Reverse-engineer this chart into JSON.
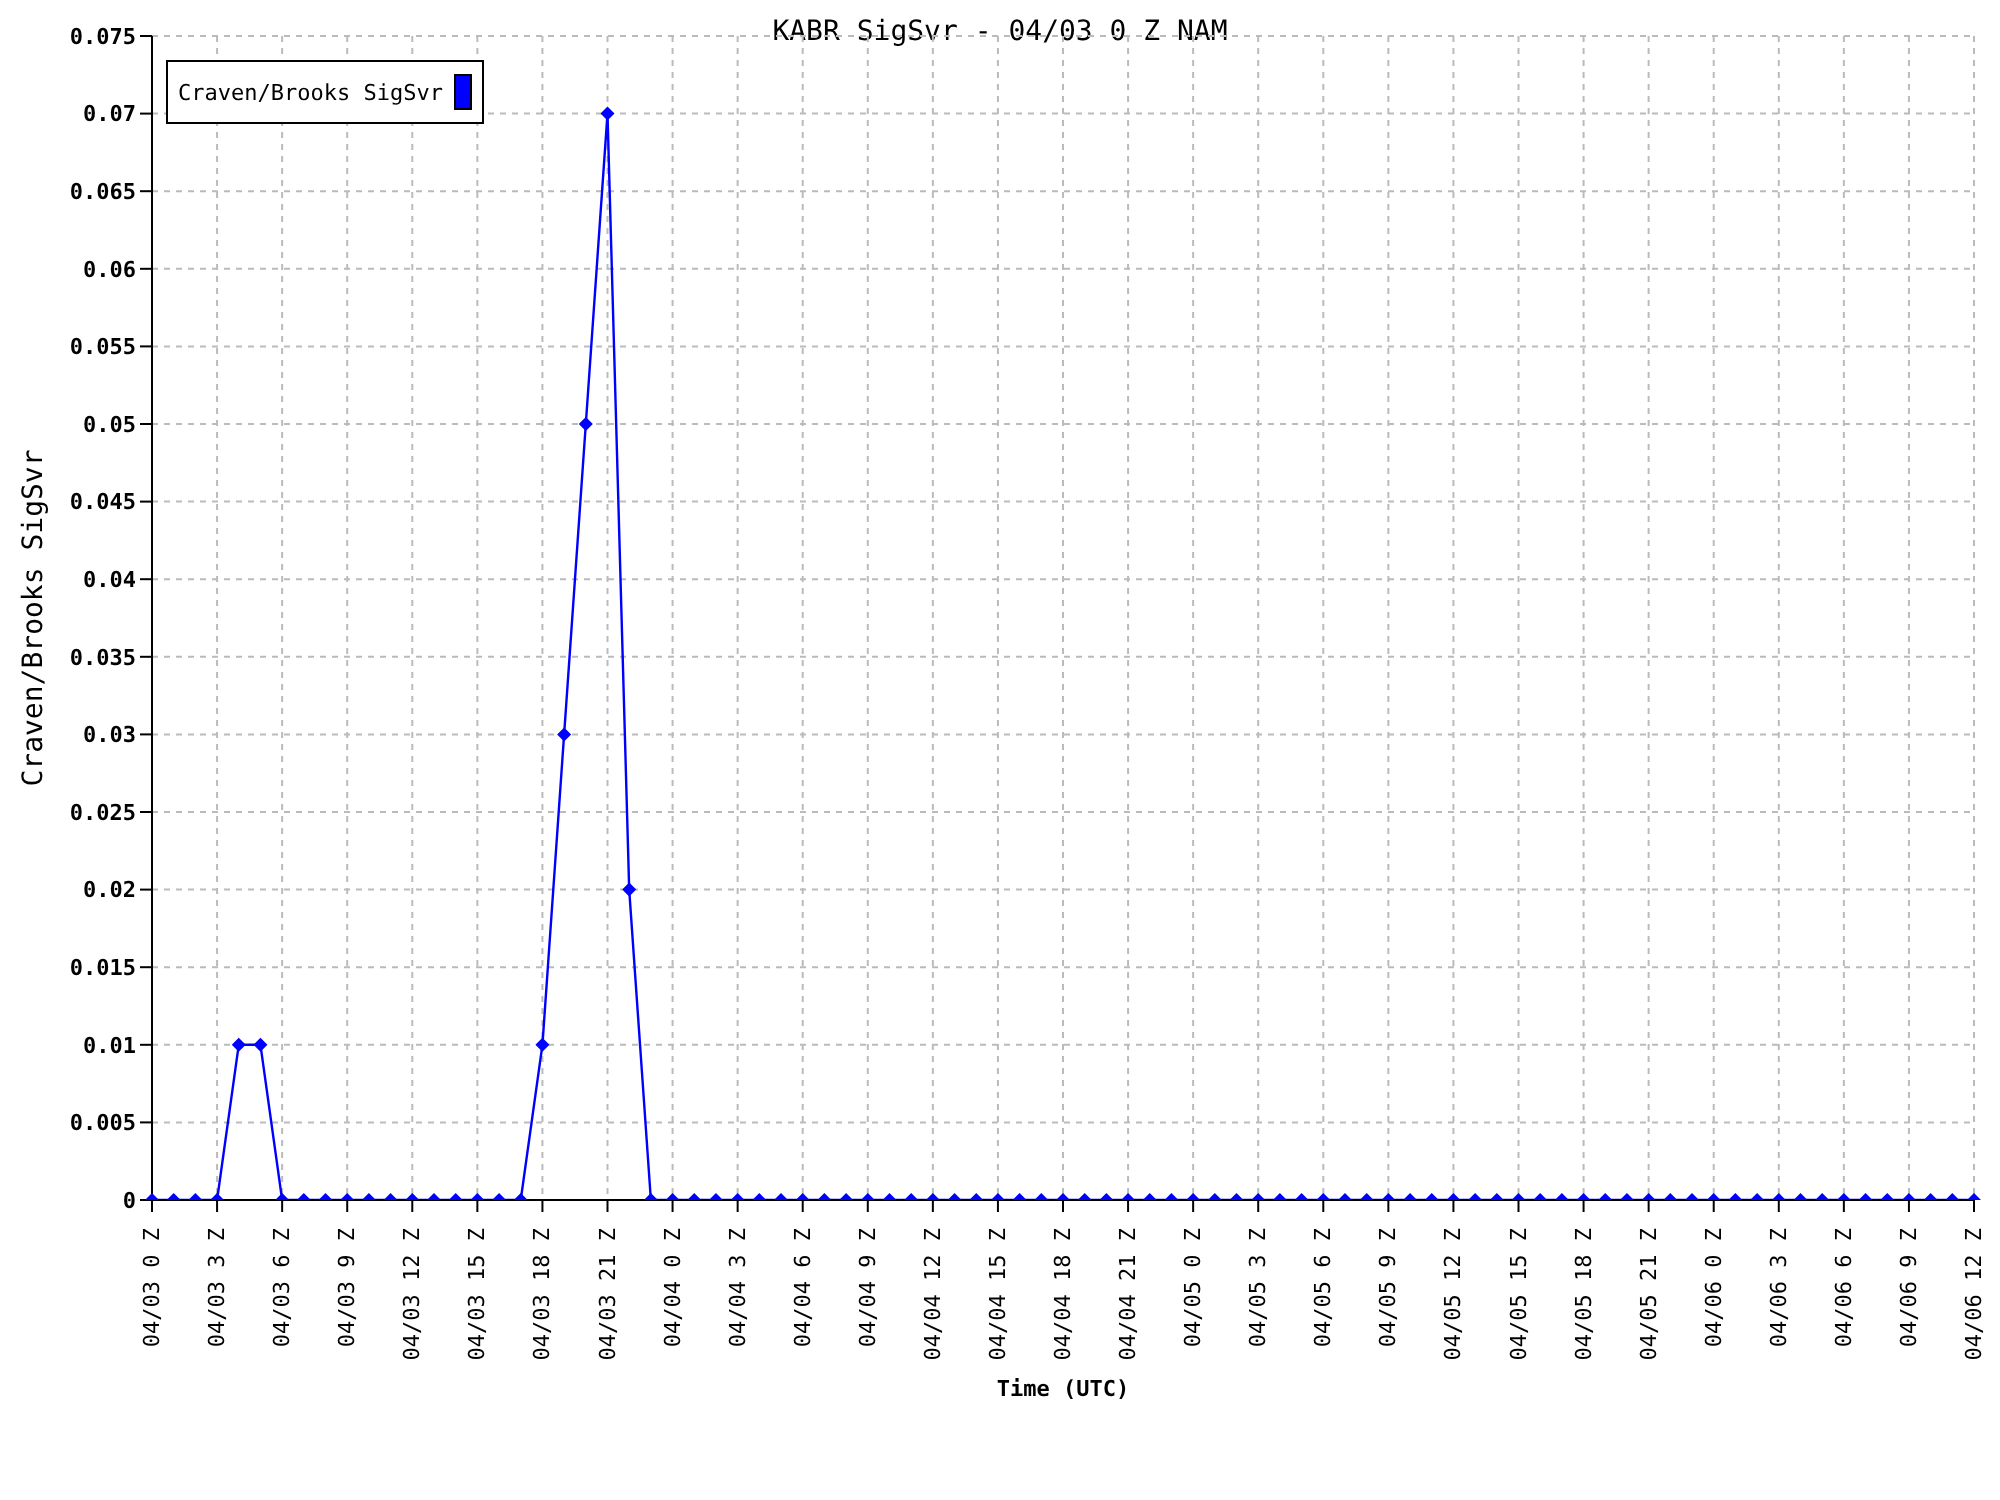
{
  "chart_data": {
    "type": "line",
    "title": "KABR SigSvr - 04/03 0 Z NAM",
    "xlabel": "Time (UTC)",
    "ylabel": "Craven/Brooks SigSvr",
    "categories": [
      "04/03 0 Z",
      null,
      null,
      "04/03 3 Z",
      null,
      null,
      "04/03 6 Z",
      null,
      null,
      "04/03 9 Z",
      null,
      null,
      "04/03 12 Z",
      null,
      null,
      "04/03 15 Z",
      null,
      null,
      "04/03 18 Z",
      null,
      null,
      "04/03 21 Z",
      null,
      null,
      "04/04 0 Z",
      null,
      null,
      "04/04 3 Z",
      null,
      null,
      "04/04 6 Z",
      null,
      null,
      "04/04 9 Z",
      null,
      null,
      "04/04 12 Z",
      null,
      null,
      "04/04 15 Z",
      null,
      null,
      "04/04 18 Z",
      null,
      null,
      "04/04 21 Z",
      null,
      null,
      "04/05 0 Z",
      null,
      null,
      "04/05 3 Z",
      null,
      null,
      "04/05 6 Z",
      null,
      null,
      "04/05 9 Z",
      null,
      null,
      "04/05 12 Z",
      null,
      null,
      "04/05 15 Z",
      null,
      null,
      "04/05 18 Z",
      null,
      null,
      "04/05 21 Z",
      null,
      null,
      "04/06 0 Z",
      null,
      null,
      "04/06 3 Z",
      null,
      null,
      "04/06 6 Z",
      null,
      null,
      "04/06 9 Z",
      null,
      null,
      "04/06 12 Z"
    ],
    "series": [
      {
        "name": "Craven/Brooks SigSvr",
        "color": "#0000ff",
        "values": [
          0,
          0,
          0,
          0,
          0.01,
          0.01,
          0,
          0,
          0,
          0,
          0,
          0,
          0,
          0,
          0,
          0,
          0,
          0,
          0.01,
          0.03,
          0.05,
          0.07,
          0.02,
          0,
          0,
          0,
          0,
          0,
          0,
          0,
          0,
          0,
          0,
          0,
          0,
          0,
          0,
          0,
          0,
          0,
          0,
          0,
          0,
          0,
          0,
          0,
          0,
          0,
          0,
          0,
          0,
          0,
          0,
          0,
          0,
          0,
          0,
          0,
          0,
          0,
          0,
          0,
          0,
          0,
          0,
          0,
          0,
          0,
          0,
          0,
          0,
          0,
          0,
          0,
          0,
          0,
          0,
          0,
          0,
          0,
          0,
          0,
          0,
          0,
          0
        ]
      }
    ],
    "ylim": [
      0,
      0.075
    ],
    "yticks": [
      0,
      0.005,
      0.01,
      0.015,
      0.02,
      0.025,
      0.03,
      0.035,
      0.04,
      0.045,
      0.05,
      0.055,
      0.06,
      0.065,
      0.07,
      0.075
    ],
    "grid": true,
    "legend": "top left",
    "marker": "diamond",
    "line_style": "solid"
  }
}
